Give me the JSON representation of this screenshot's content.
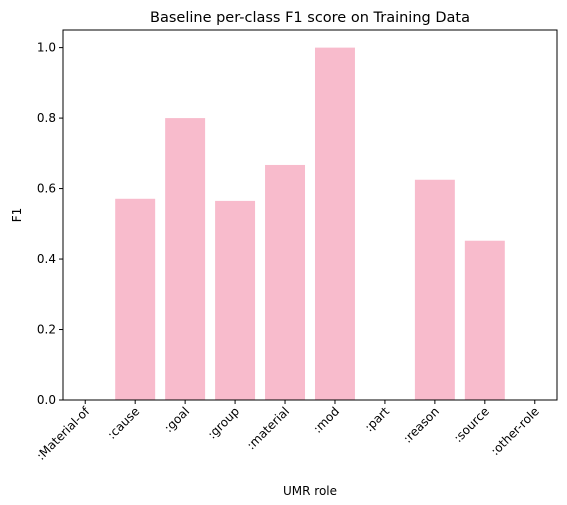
{
  "chart_data": {
    "type": "bar",
    "title": "Baseline per-class F1 score on Training Data",
    "xlabel": "UMR role",
    "ylabel": "F1",
    "categories": [
      ":Material-of",
      ":cause",
      ":goal",
      ":group",
      ":material",
      ":mod",
      ":part",
      ":reason",
      ":source",
      ":other-role"
    ],
    "values": [
      0.0,
      0.571,
      0.8,
      0.565,
      0.667,
      1.0,
      0.0,
      0.625,
      0.452,
      0.0
    ],
    "ylim": [
      0,
      1.05
    ],
    "yticks": [
      "0.0",
      "0.2",
      "0.4",
      "0.6",
      "0.8",
      "1.0"
    ],
    "grid": false,
    "legend": "none",
    "bar_color": "#f8bbcc"
  }
}
